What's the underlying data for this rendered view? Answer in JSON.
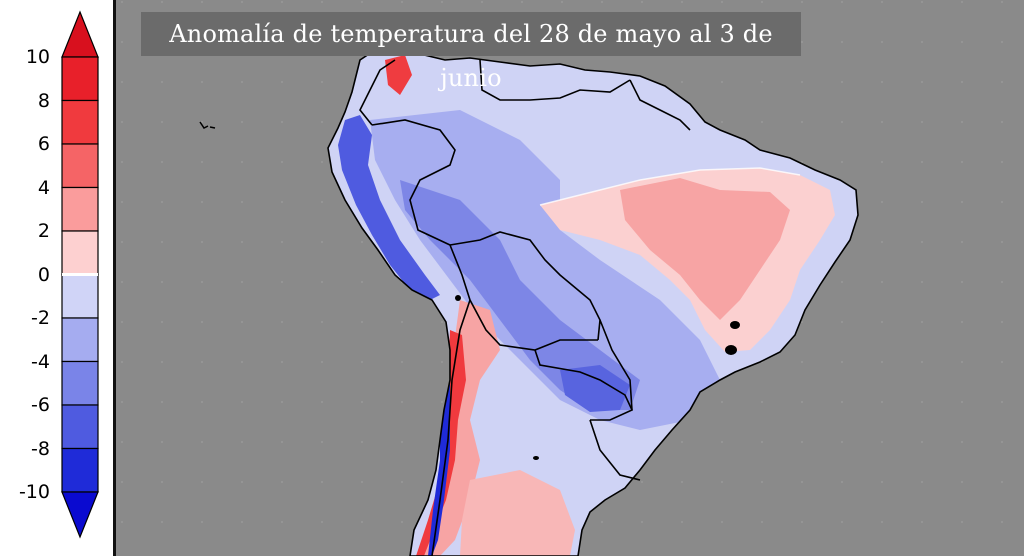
{
  "title": "Anomalía de temperatura del 28 de mayo al 3 de junio",
  "legend": {
    "ticks": [
      "10",
      "8",
      "6",
      "4",
      "2",
      "0",
      "-2",
      "-4",
      "-6",
      "-8",
      "-10"
    ],
    "bins": [
      {
        "range": "8 to 10",
        "color": "#e8202a"
      },
      {
        "range": "6 to 8",
        "color": "#f03a3e"
      },
      {
        "range": "4 to 6",
        "color": "#f56466"
      },
      {
        "range": "2 to 4",
        "color": "#fa9c9c"
      },
      {
        "range": "0 to 2",
        "color": "#fdd0d0"
      },
      {
        "range": "-2 to 0",
        "color": "#d0d4f7"
      },
      {
        "range": "-4 to -2",
        "color": "#a5acf0"
      },
      {
        "range": "-6 to -4",
        "color": "#7a84e8"
      },
      {
        "range": "-8 to -6",
        "color": "#4f5be0"
      },
      {
        "range": "-10 to -8",
        "color": "#1f2bd8"
      }
    ],
    "overflow_high_color": "#d8101e",
    "overflow_low_color": "#0a0ad0"
  },
  "map": {
    "region": "South America",
    "ocean_color": "#8a8a8a",
    "border_color": "#000000"
  }
}
